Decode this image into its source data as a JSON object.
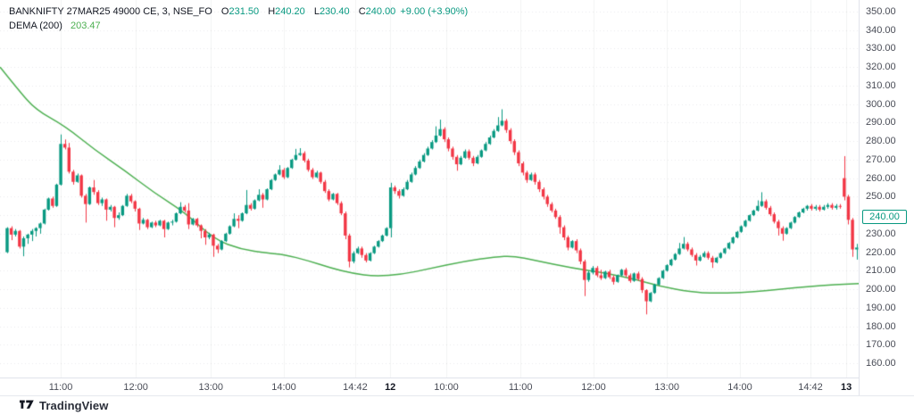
{
  "legend": {
    "symbol_title": "BANKNIFTY 27MAR25 49000 CE, 3, NSE_FO",
    "o_label": "O",
    "o_value": "231.50",
    "h_label": "H",
    "h_value": "240.20",
    "l_label": "L",
    "l_value": "230.40",
    "c_label": "C",
    "c_value": "240.00",
    "change": "+9.00 (+3.90%)",
    "indicator_name": "DEMA (200)",
    "indicator_value": "203.47"
  },
  "watermark": {
    "text": "TradingView"
  },
  "colors": {
    "up": "#089981",
    "down": "#f23645",
    "dema": "#4caf50",
    "grid_v": "rgba(42,46,57,0.06)",
    "grid_h": "rgba(42,46,57,0.10)",
    "axis_text": "#4a4d57"
  },
  "price_axis": {
    "ticks": [
      [
        "350.00",
        350
      ],
      [
        "340.00",
        340
      ],
      [
        "330.00",
        330
      ],
      [
        "320.00",
        320
      ],
      [
        "310.00",
        310
      ],
      [
        "300.00",
        300
      ],
      [
        "290.00",
        290
      ],
      [
        "280.00",
        280
      ],
      [
        "270.00",
        270
      ],
      [
        "260.00",
        260
      ],
      [
        "250.00",
        250
      ],
      [
        "240.00",
        240
      ],
      [
        "230.00",
        230
      ],
      [
        "220.00",
        220
      ],
      [
        "210.00",
        210
      ],
      [
        "200.00",
        200
      ],
      [
        "190.00",
        190
      ],
      [
        "180.00",
        180
      ],
      [
        "170.00",
        170
      ],
      [
        "160.00",
        160
      ]
    ],
    "current": {
      "label": "240.00",
      "price": 240
    }
  },
  "time_axis": {
    "ticks": [
      [
        "11:00",
        13,
        0
      ],
      [
        "12:00",
        31.2,
        0
      ],
      [
        "13:00",
        49.4,
        0
      ],
      [
        "14:00",
        67.1,
        0
      ],
      [
        "14:42",
        84.4,
        0
      ],
      [
        "12",
        92.9,
        1
      ],
      [
        "10:00",
        106.5,
        0
      ],
      [
        "11:00",
        124.5,
        0
      ],
      [
        "12:00",
        142.2,
        0
      ],
      [
        "13:00",
        160,
        0
      ],
      [
        "14:00",
        177.7,
        0
      ],
      [
        "14:42",
        194.8,
        0
      ],
      [
        "13",
        203.5,
        1
      ]
    ]
  },
  "chart_data": {
    "type": "candlestick",
    "title": "BANKNIFTY 27MAR25 49000 CE, 3, NSE_FO",
    "interval_minutes": 3,
    "legend_ohlc": {
      "open": 231.5,
      "high": 240.2,
      "low": 230.4,
      "close": 240.0,
      "change": 9.0,
      "change_pct": 3.9
    },
    "indicator": {
      "name": "DEMA",
      "period": 200,
      "last_value": 203.47
    },
    "ylim": [
      152.3,
      356.25
    ],
    "grid": true,
    "candles": [
      [
        220,
        233.5,
        219.5,
        233
      ],
      [
        233,
        234,
        226.5,
        229.5
      ],
      [
        229.5,
        232.5,
        228.5,
        231.5
      ],
      [
        231.5,
        232,
        222,
        223
      ],
      [
        223,
        228.5,
        217.8,
        227.5
      ],
      [
        227.5,
        230,
        224.5,
        229.5
      ],
      [
        229.5,
        232.5,
        226,
        231.5
      ],
      [
        231.5,
        233.5,
        228.5,
        233
      ],
      [
        233,
        236,
        230,
        235.5
      ],
      [
        235.5,
        243.5,
        235,
        243
      ],
      [
        243,
        249.5,
        242.5,
        249
      ],
      [
        249,
        250,
        244,
        245
      ],
      [
        245,
        257,
        244.5,
        256.5
      ],
      [
        256.5,
        283.6,
        256,
        278.5
      ],
      [
        278.5,
        280.9,
        275.5,
        276.5
      ],
      [
        276.5,
        279,
        262.5,
        263.5
      ],
      [
        263.5,
        264.5,
        256.5,
        258
      ],
      [
        258,
        262.5,
        257.5,
        261.5
      ],
      [
        261.5,
        262,
        249.5,
        250.5
      ],
      [
        250.5,
        251.5,
        236,
        246
      ],
      [
        246,
        255.5,
        245.5,
        255
      ],
      [
        255,
        259,
        251,
        252.5
      ],
      [
        252.5,
        253.5,
        245.5,
        246.5
      ],
      [
        246.5,
        249.5,
        245,
        248.5
      ],
      [
        248.5,
        249,
        237,
        243
      ],
      [
        243,
        245.5,
        242,
        244.5
      ],
      [
        244.5,
        245,
        233.5,
        238.5
      ],
      [
        238.5,
        241.5,
        237.5,
        240
      ],
      [
        240,
        245.5,
        239.5,
        245
      ],
      [
        245,
        251.5,
        244.5,
        250.5
      ],
      [
        250.5,
        251.5,
        246.5,
        247.5
      ],
      [
        247.5,
        248,
        242,
        243.5
      ],
      [
        243.5,
        244,
        232,
        235.5
      ],
      [
        235.5,
        238.5,
        235,
        237.5
      ],
      [
        237.5,
        238,
        232.5,
        233.5
      ],
      [
        233.5,
        236.5,
        233,
        236
      ],
      [
        236,
        237,
        233.5,
        234.5
      ],
      [
        234.5,
        237.5,
        234,
        237
      ],
      [
        237,
        237.5,
        228,
        232.5
      ],
      [
        232.5,
        236.5,
        232,
        236
      ],
      [
        236,
        237.5,
        234.5,
        236.5
      ],
      [
        236.5,
        241.5,
        236,
        241
      ],
      [
        241,
        247,
        240.5,
        244.5
      ],
      [
        244.5,
        245.5,
        241.5,
        242.5
      ],
      [
        242.5,
        246.5,
        232.5,
        235
      ],
      [
        235,
        238.5,
        234.5,
        238
      ],
      [
        238,
        238.5,
        233.5,
        234.5
      ],
      [
        234.5,
        235,
        227.5,
        231.5
      ],
      [
        231.5,
        232.5,
        224,
        228
      ],
      [
        228,
        230.5,
        227,
        229.5
      ],
      [
        229.5,
        230,
        217.5,
        223.5
      ],
      [
        223.5,
        224.5,
        219.5,
        221.5
      ],
      [
        221.5,
        226.5,
        221,
        226
      ],
      [
        226,
        230.5,
        225.5,
        230
      ],
      [
        230,
        234.5,
        229.5,
        234
      ],
      [
        234,
        241,
        233.5,
        238
      ],
      [
        238,
        240,
        233,
        237
      ],
      [
        237,
        241.5,
        236.5,
        241
      ],
      [
        241,
        253.6,
        240.5,
        245.5
      ],
      [
        245.5,
        246.5,
        242.5,
        243.5
      ],
      [
        243.5,
        248.5,
        243,
        248
      ],
      [
        248,
        254,
        247.5,
        251
      ],
      [
        251,
        252,
        244,
        248.5
      ],
      [
        248.5,
        254.5,
        248,
        254
      ],
      [
        254,
        259.5,
        253.5,
        259
      ],
      [
        259,
        262.5,
        258.5,
        262
      ],
      [
        262,
        267,
        261.5,
        264.5
      ],
      [
        264.5,
        265.5,
        259.5,
        260.5
      ],
      [
        260.5,
        266,
        260,
        265.5
      ],
      [
        265.5,
        270.5,
        265,
        270
      ],
      [
        270,
        275.8,
        269.5,
        272.5
      ],
      [
        272.5,
        276.2,
        272,
        273.5
      ],
      [
        273.5,
        274.5,
        268.5,
        269.5
      ],
      [
        269.5,
        270.5,
        263.5,
        264.5
      ],
      [
        264.5,
        265.5,
        259.5,
        260.5
      ],
      [
        260.5,
        264,
        260,
        263
      ],
      [
        263,
        263.5,
        257,
        258
      ],
      [
        258,
        259,
        252,
        253
      ],
      [
        253,
        254,
        247.5,
        248.5
      ],
      [
        248.5,
        252,
        248,
        251.5
      ],
      [
        251.5,
        252,
        245.5,
        246.5
      ],
      [
        246.5,
        247.5,
        240,
        241
      ],
      [
        241,
        242,
        227,
        229
      ],
      [
        229,
        230,
        211.8,
        215
      ],
      [
        215,
        220.5,
        214,
        219.5
      ],
      [
        219.5,
        223,
        219,
        222
      ],
      [
        222,
        223,
        217,
        218.5
      ],
      [
        218.5,
        219.5,
        214.5,
        215.5
      ],
      [
        215.5,
        220,
        215,
        219.5
      ],
      [
        219.5,
        223.5,
        219,
        223
      ],
      [
        223,
        226.5,
        222.5,
        226
      ],
      [
        226,
        229.5,
        225.5,
        229
      ],
      [
        229,
        233.5,
        228.5,
        233
      ],
      [
        233,
        257.5,
        228,
        255
      ],
      [
        255,
        256,
        251.5,
        253
      ],
      [
        253,
        254,
        249,
        250.5
      ],
      [
        250.5,
        255,
        250,
        254
      ],
      [
        254,
        259,
        253.5,
        258
      ],
      [
        258,
        263,
        257.5,
        262
      ],
      [
        262,
        266.5,
        261.5,
        265.5
      ],
      [
        265.5,
        270,
        265,
        269
      ],
      [
        269,
        273.5,
        268.5,
        272.5
      ],
      [
        272.5,
        277,
        272,
        276
      ],
      [
        276,
        280.5,
        275.5,
        279.5
      ],
      [
        279.5,
        288,
        279,
        283
      ],
      [
        283,
        291.6,
        282.5,
        286.5
      ],
      [
        286.5,
        287.5,
        279.5,
        281
      ],
      [
        281,
        282,
        274.5,
        276
      ],
      [
        276,
        277,
        270,
        271.5
      ],
      [
        271.5,
        272.5,
        264,
        267.5
      ],
      [
        267.5,
        272,
        267,
        271
      ],
      [
        271,
        275.5,
        270.5,
        274.5
      ],
      [
        274.5,
        275.5,
        270,
        271
      ],
      [
        271,
        272,
        266.5,
        268
      ],
      [
        268,
        272.5,
        267.5,
        271.5
      ],
      [
        271.5,
        275.5,
        271,
        275
      ],
      [
        275,
        279.5,
        274.5,
        278.5
      ],
      [
        278.5,
        283,
        278,
        282
      ],
      [
        282,
        286.5,
        281.5,
        285.5
      ],
      [
        285.5,
        293,
        285,
        288.5
      ],
      [
        288.5,
        297.2,
        288,
        291
      ],
      [
        291,
        292,
        284.5,
        286
      ],
      [
        286,
        287,
        278.5,
        280
      ],
      [
        280,
        281,
        272.5,
        274
      ],
      [
        274,
        275,
        266.5,
        268
      ],
      [
        268,
        269,
        261.5,
        263
      ],
      [
        263,
        264,
        257.5,
        259
      ],
      [
        259,
        263,
        258.5,
        262
      ],
      [
        262,
        263,
        256.5,
        258
      ],
      [
        258,
        259,
        252.5,
        254
      ],
      [
        254,
        255,
        248.5,
        250
      ],
      [
        250,
        251,
        244.5,
        246
      ],
      [
        246,
        247,
        241.5,
        242.5
      ],
      [
        242.5,
        243.5,
        238,
        239
      ],
      [
        239,
        240,
        230,
        233.5
      ],
      [
        233.5,
        234.5,
        226.5,
        228
      ],
      [
        228,
        229,
        221,
        222.5
      ],
      [
        222.5,
        226.5,
        222,
        226
      ],
      [
        226,
        227,
        219.5,
        221
      ],
      [
        221,
        222,
        213.5,
        215
      ],
      [
        215,
        216,
        196.3,
        205
      ],
      [
        205,
        210,
        204,
        209
      ],
      [
        209,
        212.5,
        208,
        211.5
      ],
      [
        211.5,
        212.5,
        206.5,
        207.5
      ],
      [
        207.5,
        210.5,
        205,
        206
      ],
      [
        206,
        210,
        205.5,
        209.5
      ],
      [
        209.5,
        210.5,
        205.5,
        206.5
      ],
      [
        206.5,
        207.5,
        202.5,
        204
      ],
      [
        204,
        208,
        203.5,
        207.5
      ],
      [
        207.5,
        211,
        207,
        210.5
      ],
      [
        210.5,
        211.5,
        206.5,
        207.5
      ],
      [
        207.5,
        208.5,
        203.5,
        204.5
      ],
      [
        204.5,
        209,
        204,
        208.5
      ],
      [
        208.5,
        209.5,
        204.5,
        205.5
      ],
      [
        205.5,
        206.5,
        198,
        199.5
      ],
      [
        199.5,
        200,
        186.4,
        193.5
      ],
      [
        193.5,
        198.5,
        193,
        198
      ],
      [
        198,
        203,
        197.5,
        202.5
      ],
      [
        202.5,
        206.5,
        202,
        206
      ],
      [
        206,
        210.5,
        205.5,
        210
      ],
      [
        210,
        213.5,
        209.5,
        213
      ],
      [
        213,
        216.5,
        212.5,
        216
      ],
      [
        216,
        219.5,
        215.5,
        219
      ],
      [
        219,
        225,
        218.5,
        222
      ],
      [
        222,
        228.2,
        221.5,
        224.5
      ],
      [
        224.5,
        225.5,
        220.5,
        221.5
      ],
      [
        221.5,
        222.5,
        217.5,
        218.5
      ],
      [
        218.5,
        219.5,
        212.8,
        215.5
      ],
      [
        215.5,
        218.5,
        215,
        217.5
      ],
      [
        217.5,
        220.5,
        217,
        219.5
      ],
      [
        219.5,
        220.5,
        216,
        217
      ],
      [
        217,
        218,
        211.5,
        214.5
      ],
      [
        214.5,
        217.5,
        214,
        217
      ],
      [
        217,
        220,
        216.5,
        219.5
      ],
      [
        219.5,
        222.5,
        219,
        222
      ],
      [
        222,
        225.5,
        221.5,
        225
      ],
      [
        225,
        228.5,
        224.5,
        228
      ],
      [
        228,
        231.5,
        227.5,
        231
      ],
      [
        231,
        234.5,
        230.5,
        234
      ],
      [
        234,
        237.5,
        233.5,
        237
      ],
      [
        237,
        240.5,
        236.5,
        240
      ],
      [
        240,
        243,
        239.5,
        242.5
      ],
      [
        242.5,
        248,
        242,
        245
      ],
      [
        245,
        252.4,
        244.5,
        247.5
      ],
      [
        247.5,
        248.5,
        243,
        244
      ],
      [
        244,
        245,
        239.5,
        240.5
      ],
      [
        240.5,
        241.5,
        235.5,
        236.5
      ],
      [
        236.5,
        237.5,
        229,
        233
      ],
      [
        233,
        234,
        226.2,
        230
      ],
      [
        230,
        233.5,
        229.5,
        233
      ],
      [
        233,
        236.5,
        232.5,
        236
      ],
      [
        236,
        239.5,
        235.5,
        239
      ],
      [
        239,
        242,
        238.5,
        241.5
      ],
      [
        241.5,
        244,
        241,
        243.5
      ],
      [
        243.5,
        245.5,
        242.5,
        245
      ],
      [
        245,
        246,
        242.5,
        243.5
      ],
      [
        243.5,
        245.5,
        242.5,
        244.5
      ],
      [
        244.5,
        245.5,
        242,
        243
      ],
      [
        243,
        245.5,
        242.5,
        244.5
      ],
      [
        244.5,
        246.5,
        243.5,
        245.5
      ],
      [
        245.5,
        246.5,
        243,
        244
      ],
      [
        244,
        246,
        243,
        245
      ],
      [
        245,
        246,
        243.5,
        244.5
      ],
      [
        260,
        271.9,
        248,
        250
      ],
      [
        250,
        251,
        235,
        237.5
      ],
      [
        237.5,
        238.5,
        217.5,
        221.5
      ],
      [
        221.5,
        224.5,
        216,
        222.5
      ],
      [
        222.5,
        223,
        208.7,
        213.5
      ],
      [
        213.5,
        221.5,
        212.5,
        220.5
      ],
      [
        220.5,
        233,
        219.5,
        231.5
      ]
    ],
    "dema_points": [
      [
        -1.7,
        320
      ],
      [
        2.6,
        308
      ],
      [
        6.9,
        297
      ],
      [
        14.1,
        288
      ],
      [
        21.4,
        275
      ],
      [
        28.6,
        264
      ],
      [
        35.7,
        252
      ],
      [
        43.1,
        241.5
      ],
      [
        50.2,
        227
      ],
      [
        56.7,
        221.5
      ],
      [
        63.2,
        219.5
      ],
      [
        67.3,
        218.7
      ],
      [
        72.9,
        215.5
      ],
      [
        78.4,
        211.5
      ],
      [
        83.8,
        208.5
      ],
      [
        89.2,
        207
      ],
      [
        95.7,
        208
      ],
      [
        102.2,
        211
      ],
      [
        110.8,
        215
      ],
      [
        118.4,
        217.5
      ],
      [
        122.7,
        218
      ],
      [
        128.1,
        215.5
      ],
      [
        136.8,
        211.5
      ],
      [
        145.5,
        208.5
      ],
      [
        152,
        205.5
      ],
      [
        158.4,
        201.5
      ],
      [
        165.8,
        198.5
      ],
      [
        171.4,
        197.8
      ],
      [
        177.9,
        198.2
      ],
      [
        184.4,
        199.3
      ],
      [
        190.9,
        200.8
      ],
      [
        197.4,
        202
      ],
      [
        203.9,
        202.8
      ],
      [
        209.1,
        203.4
      ]
    ]
  }
}
